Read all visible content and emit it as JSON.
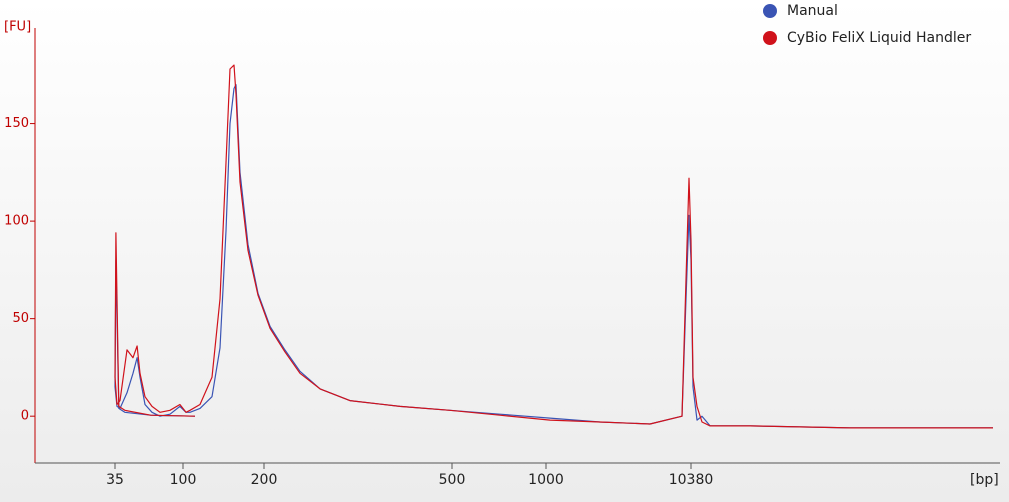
{
  "chart_data": {
    "type": "line",
    "y_label": "[FU]",
    "x_label": "[bp]",
    "x": [
      10,
      20,
      30,
      33,
      34.5,
      35,
      36.1,
      37.8,
      42.1,
      46.2,
      49.2,
      51.5,
      55.6,
      62,
      70.1,
      81.8,
      95.4,
      102.6,
      106.2,
      115.7,
      128.2,
      137.3,
      144.5,
      149.5,
      154.7,
      157.4,
      162.8,
      174.4,
      190,
      206,
      221.5,
      238.4,
      262.9,
      304,
      388,
      495,
      712,
      1067,
      2388,
      5355,
      8974,
      9572,
      10046,
      10380,
      10720,
      11430,
      12390,
      14110,
      26950,
      134000,
      672000,
      1340000
    ],
    "series": [
      {
        "name": "Manual",
        "color": "#3a54b4",
        "values": [
          0,
          0.5,
          2,
          4,
          80,
          15,
          5,
          4,
          12,
          22,
          30,
          20,
          6,
          2,
          0,
          1,
          5,
          2,
          2,
          4,
          10,
          35,
          95,
          150,
          168,
          170,
          125,
          88,
          63,
          46,
          34,
          23,
          14,
          8,
          5,
          3,
          1,
          -1,
          -3,
          -4,
          0,
          60,
          103,
          80,
          15,
          -2,
          0,
          -5,
          -5,
          -6,
          -6,
          -6
        ]
      },
      {
        "name": "CyBio FeliX Liquid Handler",
        "color": "#d0121b",
        "values": [
          0,
          0.5,
          3,
          5,
          94,
          20,
          6,
          8,
          34,
          30,
          36,
          22,
          10,
          5,
          2,
          3,
          6,
          2,
          3,
          6,
          20,
          60,
          130,
          178,
          180,
          165,
          120,
          85,
          62,
          45,
          33,
          22,
          14,
          8,
          5,
          3,
          0.5,
          -2,
          -3,
          -4,
          0,
          70,
          122,
          90,
          20,
          5,
          -3,
          -5,
          -5,
          -6,
          -6,
          -6
        ]
      }
    ],
    "xlim": [
      10,
      1340000
    ],
    "xticks": [
      35,
      100,
      200,
      500,
      1000,
      10380
    ],
    "ylim": [
      -24,
      199
    ],
    "yticks": [
      0,
      50,
      100,
      150
    ],
    "legend": "upper right"
  }
}
